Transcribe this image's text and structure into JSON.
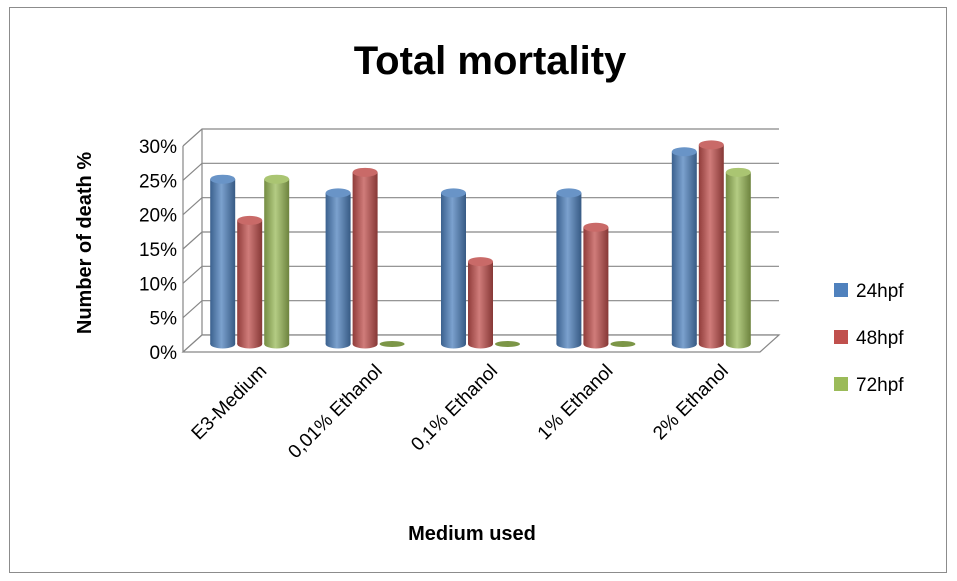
{
  "chart_data": {
    "type": "bar",
    "title": "Total mortality",
    "xlabel": "Medium used",
    "ylabel": "Number of death %",
    "categories": [
      "E3-Medium",
      "0,01% Ethanol",
      "0,1% Ethanol",
      "1% Ethanol",
      "2% Ethanol"
    ],
    "series": [
      {
        "name": "24hpf",
        "color": "#4f81bd",
        "values": [
          24,
          22,
          22,
          22,
          28
        ]
      },
      {
        "name": "48hpf",
        "color": "#c0504d",
        "values": [
          18,
          25,
          12,
          17,
          29
        ]
      },
      {
        "name": "72hpf",
        "color": "#9bbb59",
        "values": [
          24,
          0,
          0,
          0,
          25
        ]
      }
    ],
    "ylim": [
      0,
      30
    ],
    "yticks": [
      "0%",
      "5%",
      "10%",
      "15%",
      "20%",
      "25%",
      "30%"
    ],
    "grid": true,
    "legend_position": "right",
    "three_d": true
  }
}
